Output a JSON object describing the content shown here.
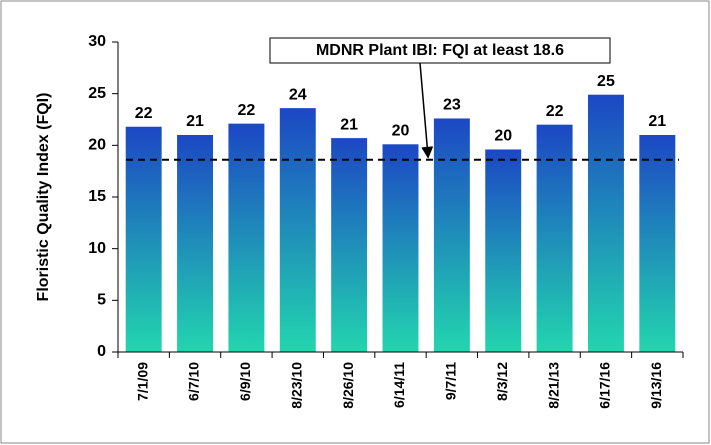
{
  "chart_data": {
    "type": "bar",
    "y_label": "Floristic Quality Index (FQI)",
    "categories": [
      "7/1/09",
      "6/7/10",
      "6/9/10",
      "8/23/10",
      "8/26/10",
      "6/14/11",
      "9/7/11",
      "8/3/12",
      "8/21/13",
      "6/17/16",
      "9/13/16"
    ],
    "values": [
      21.8,
      21.0,
      22.1,
      23.6,
      20.7,
      20.1,
      22.6,
      19.6,
      22.0,
      24.9,
      21.0
    ],
    "value_labels": [
      "22",
      "21",
      "22",
      "24",
      "21",
      "20",
      "23",
      "20",
      "22",
      "25",
      "21"
    ],
    "gradient": [
      "#1c47c4",
      "#22d6ae"
    ],
    "ylim": [
      0,
      30
    ],
    "yticks": [
      0,
      5,
      10,
      15,
      20,
      25,
      30
    ],
    "reference_line": {
      "value": 18.6,
      "label": "MDNR Plant IBI:  FQI at least 18.6"
    }
  }
}
